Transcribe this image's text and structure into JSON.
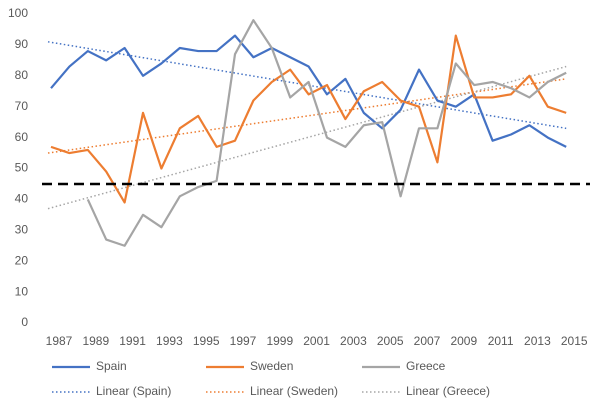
{
  "chart_data": {
    "type": "line",
    "categories": [
      "1987",
      null,
      "1989",
      null,
      "1991",
      null,
      "1993",
      null,
      "1995",
      null,
      "1997",
      null,
      "1999",
      null,
      "2001",
      null,
      "2003",
      null,
      "2005",
      null,
      "2007",
      null,
      "2009",
      null,
      "2011",
      null,
      "2013",
      null,
      "2015"
    ],
    "series": [
      {
        "name": "Spain",
        "color": "#4472c4",
        "values": [
          76,
          83,
          88,
          85,
          89,
          80,
          84,
          89,
          88,
          88,
          93,
          86,
          89,
          86,
          83,
          74,
          79,
          68,
          63,
          69,
          82,
          72,
          70,
          74,
          59,
          61,
          64,
          60,
          57
        ]
      },
      {
        "name": "Sweden",
        "color": "#ed7d31",
        "values": [
          57,
          55,
          56,
          49,
          39,
          68,
          50,
          63,
          67,
          57,
          59,
          72,
          78,
          82,
          74,
          77,
          66,
          75,
          78,
          72,
          70,
          52,
          93,
          73,
          73,
          74,
          80,
          70,
          68
        ]
      },
      {
        "name": "Greece",
        "color": "#a5a5a5",
        "values": [
          null,
          null,
          40,
          27,
          25,
          35,
          31,
          41,
          44,
          46,
          87,
          98,
          89,
          73,
          78,
          60,
          57,
          64,
          65,
          41,
          63,
          63,
          84,
          77,
          78,
          76,
          73,
          78,
          81
        ]
      }
    ],
    "trendlines": [
      {
        "name": "Linear (Spain)",
        "color": "#4472c4",
        "values": [
          91,
          63
        ]
      },
      {
        "name": "Linear (Sweden)",
        "color": "#ed7d31",
        "values": [
          55,
          79
        ]
      },
      {
        "name": "Linear (Greece)",
        "color": "#a5a5a5",
        "values": [
          37,
          83
        ]
      }
    ],
    "reference_line": 45,
    "ylim": [
      0,
      100
    ],
    "yticks": [
      0,
      10,
      20,
      30,
      40,
      50,
      60,
      70,
      80,
      90,
      100
    ],
    "grid": false
  }
}
